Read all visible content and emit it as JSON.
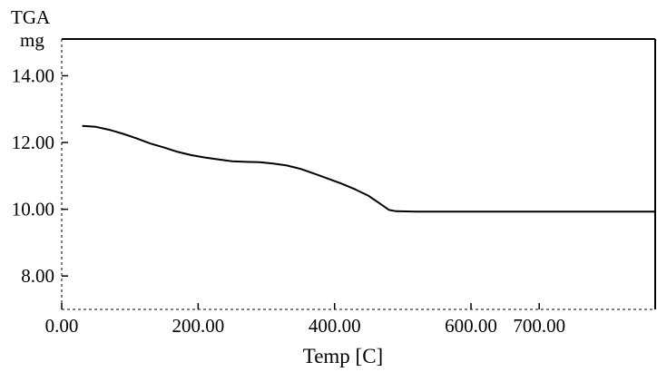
{
  "chart_data": {
    "type": "line",
    "ylabel": "TGA",
    "yunit": "mg",
    "xlabel": "Temp [C]",
    "xlim": [
      0,
      870
    ],
    "ylim": [
      7.0,
      15.1
    ],
    "x_ticks": [
      0,
      200,
      400,
      600,
      700
    ],
    "x_tick_labels": [
      "0.00",
      "200.00",
      "400.00",
      "600.00",
      "700.00"
    ],
    "y_ticks": [
      8,
      10,
      12,
      14
    ],
    "y_tick_labels": [
      "8.00",
      "10.00",
      "12.00",
      "14.00"
    ],
    "grid": false,
    "legend": "none",
    "line_color": "#000000",
    "series": [
      {
        "x": [
          30,
          50,
          70,
          90,
          110,
          130,
          150,
          170,
          190,
          210,
          230,
          250,
          270,
          290,
          310,
          330,
          350,
          370,
          390,
          410,
          430,
          450,
          470,
          480,
          490,
          520,
          560,
          600,
          700,
          800,
          870
        ],
        "y": [
          12.5,
          12.47,
          12.38,
          12.26,
          12.12,
          11.97,
          11.85,
          11.72,
          11.62,
          11.55,
          11.49,
          11.44,
          11.42,
          11.41,
          11.37,
          11.31,
          11.21,
          11.07,
          10.92,
          10.77,
          10.6,
          10.4,
          10.12,
          9.98,
          9.94,
          9.93,
          9.93,
          9.93,
          9.93,
          9.93,
          9.93
        ]
      }
    ]
  }
}
